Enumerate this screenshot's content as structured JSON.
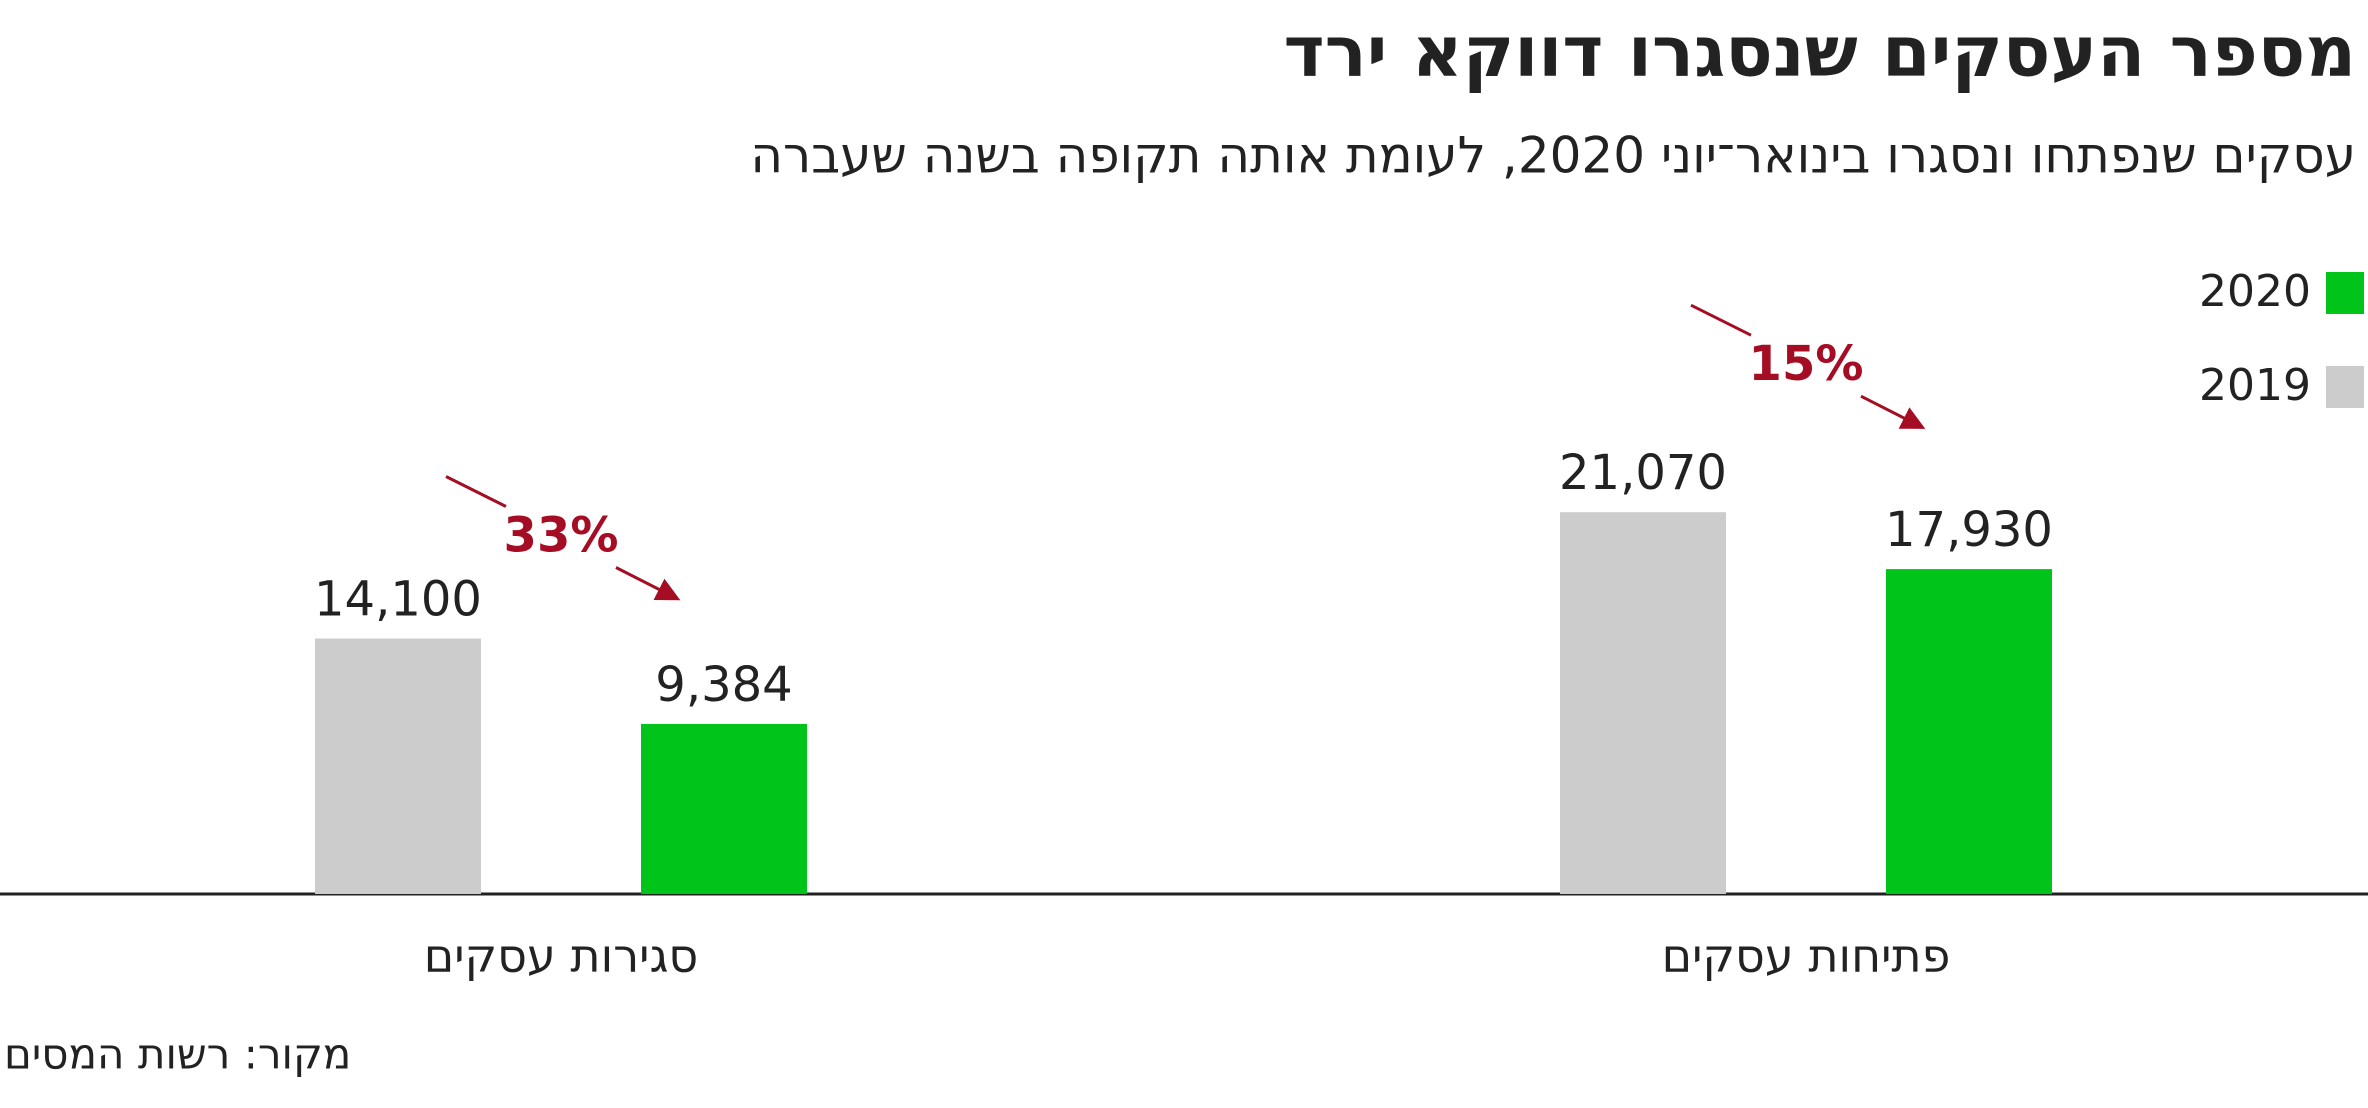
{
  "chart_data": {
    "type": "bar",
    "title": "מספר העסקים שנסגרו דווקא ירד",
    "subtitle": "עסקים שנפתחו ונסגרו בינואר־יוני 2020, לעומת אותה תקופה בשנה שעברה",
    "source": "מקור: רשות המסים",
    "categories": [
      "פתיחות עסקים",
      "סגירות עסקים"
    ],
    "series": [
      {
        "name": "2019",
        "color": "#cccccc",
        "values": [
          21070,
          14100
        ],
        "value_labels": [
          "21,070",
          "14,100"
        ]
      },
      {
        "name": "2020",
        "color": "#00c41a",
        "values": [
          17930,
          9384
        ],
        "value_labels": [
          "17,930",
          "9,384"
        ]
      }
    ],
    "annotations": [
      "15%",
      "33%"
    ],
    "ylim": [
      0,
      25000
    ]
  }
}
